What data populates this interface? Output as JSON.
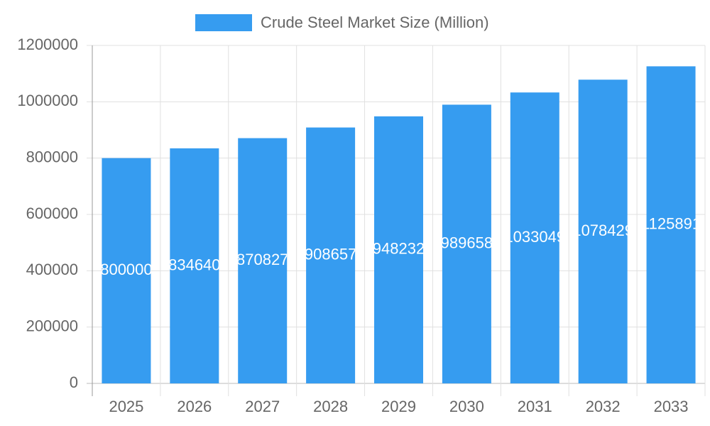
{
  "chart_data": {
    "type": "bar",
    "categories": [
      "2025",
      "2026",
      "2027",
      "2028",
      "2029",
      "2030",
      "2031",
      "2032",
      "2033"
    ],
    "series": [
      {
        "name": "Crude Steel Market Size (Million)",
        "color": "#369cf0",
        "values": [
          800000,
          834640,
          870827,
          908657,
          948232,
          989658,
          1033049,
          1078429,
          1125891
        ]
      }
    ],
    "ylim": [
      0,
      1200000
    ],
    "yticks": [
      0,
      200000,
      400000,
      600000,
      800000,
      1000000,
      1200000
    ],
    "grid": true,
    "legend": "top"
  }
}
